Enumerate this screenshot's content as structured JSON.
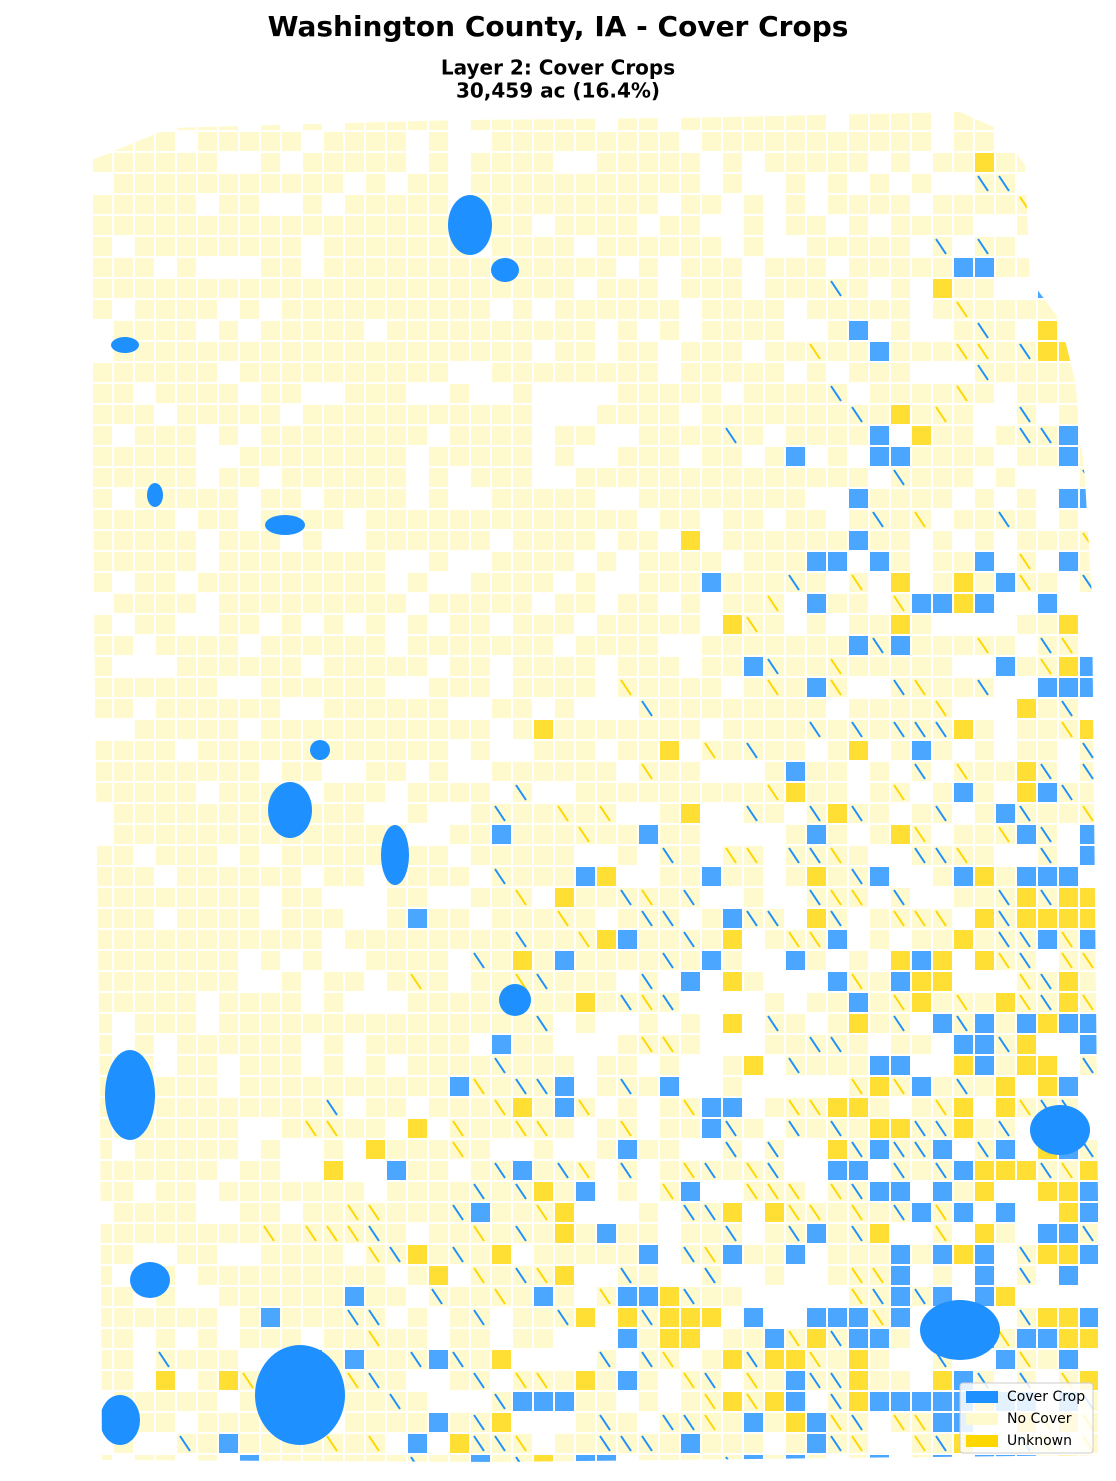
{
  "header": {
    "title": "Washington County, IA - Cover Crops",
    "subtitle": [
      "Layer 2: Cover Crops",
      "30,459 ac (16.4%)"
    ]
  },
  "legend": [
    {
      "label": "Cover Crop",
      "color": "#1e90ff"
    },
    {
      "label": "No Cover",
      "color": "#fffacd"
    },
    {
      "label": "Unknown",
      "color": "#ffd700"
    }
  ]
}
